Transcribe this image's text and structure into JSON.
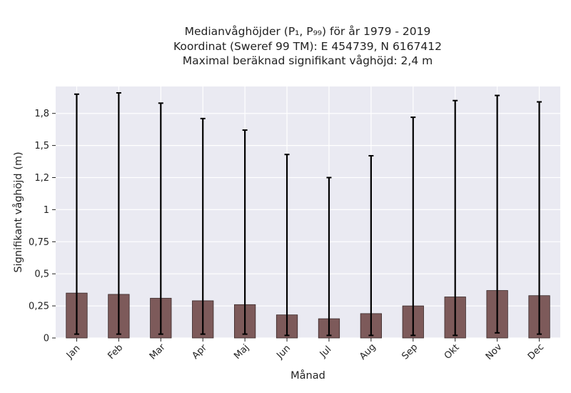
{
  "chart_data": {
    "type": "bar",
    "title": [
      "Medianvåghöjder (P₁, P₉₉) för år 1979 - 2019",
      "Koordinat (Sweref 99 TM): E 454739, N 6167412",
      "Maximal beräknad signifikant våghöjd: 2,4 m"
    ],
    "xlabel": "Månad",
    "ylabel": "Signifikant våghöjd (m)",
    "categories": [
      "Jan",
      "Feb",
      "Mar",
      "Apr",
      "Maj",
      "Jun",
      "Jul",
      "Aug",
      "Sep",
      "Okt",
      "Nov",
      "Dec"
    ],
    "series": [
      {
        "values": [
          0.35,
          0.34,
          0.31,
          0.29,
          0.26,
          0.18,
          0.15,
          0.19,
          0.25,
          0.32,
          0.37,
          0.33
        ],
        "error_low": [
          0.03,
          0.03,
          0.03,
          0.03,
          0.03,
          0.02,
          0.02,
          0.02,
          0.02,
          0.02,
          0.04,
          0.03
        ],
        "error_high": [
          1.9,
          1.91,
          1.83,
          1.71,
          1.62,
          1.43,
          1.25,
          1.42,
          1.72,
          1.85,
          1.89,
          1.84
        ]
      }
    ],
    "ylim": [
      0,
      1.96
    ],
    "yticks": [
      0,
      0.25,
      0.5,
      0.75,
      1,
      1.25,
      1.5,
      1.75
    ],
    "ytick_labels": [
      "0",
      "0,25",
      "0,5",
      "0,75",
      "1",
      "1,2",
      "1,5",
      "1,8"
    ],
    "grid": true,
    "colors": {
      "bar": "#7d5a5a",
      "bar_edge": "#3a2a2a",
      "error": "#000000",
      "plot_bg": "#eaeaf2",
      "grid": "#ffffff"
    }
  }
}
